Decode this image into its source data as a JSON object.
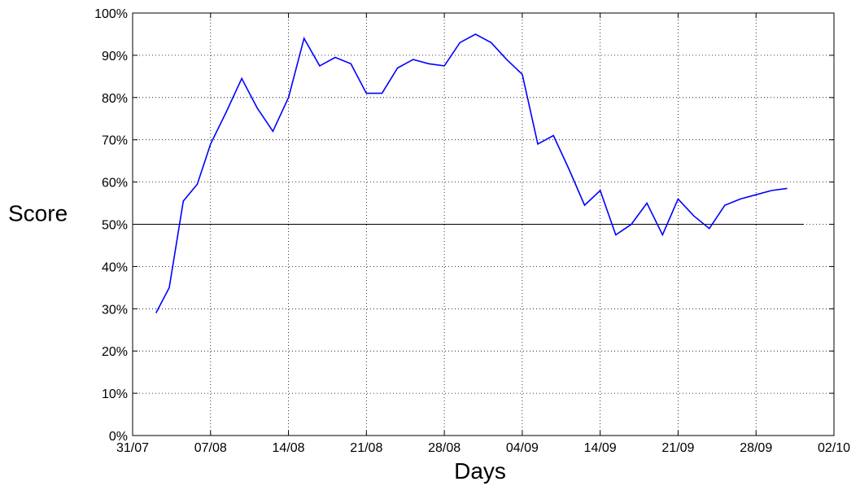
{
  "chart_data": {
    "type": "line",
    "xlabel": "Days",
    "ylabel": "Score",
    "x_ticks": [
      "31/07",
      "07/08",
      "14/08",
      "21/08",
      "28/08",
      "04/09",
      "14/09",
      "21/09",
      "28/09",
      "02/10"
    ],
    "y_ticks": [
      "0%",
      "10%",
      "20%",
      "30%",
      "40%",
      "50%",
      "60%",
      "70%",
      "80%",
      "90%",
      "100%"
    ],
    "ylim": [
      0,
      100
    ],
    "x_range": [
      0,
      9
    ],
    "grid": true,
    "reference_line": 50,
    "colors": {
      "series": "#0000ff",
      "reference": "#000000"
    },
    "series": [
      {
        "x": [
          0.3,
          0.47,
          0.65,
          0.83,
          1.0,
          1.2,
          1.4,
          1.6,
          1.8,
          2.0,
          2.2,
          2.4,
          2.6,
          2.8,
          3.0,
          3.2,
          3.4,
          3.6,
          3.8,
          4.0,
          4.2,
          4.4,
          4.6,
          4.8,
          5.0,
          5.2,
          5.4,
          5.6,
          5.8,
          6.0,
          6.2,
          6.4,
          6.6,
          6.8,
          7.0,
          7.2,
          7.4,
          7.6,
          7.8,
          8.0,
          8.2,
          8.4
        ],
        "values": [
          29,
          35,
          55.5,
          59.5,
          69,
          76.5,
          84.5,
          77.5,
          72,
          80,
          94,
          87.5,
          89.5,
          88,
          81,
          81,
          87,
          89,
          88,
          87.5,
          93,
          95,
          93,
          89,
          85.5,
          69,
          71,
          63,
          54.5,
          58,
          47.5,
          50,
          55,
          47.5,
          56,
          52,
          49,
          54.5,
          56,
          57,
          58,
          58.5
        ]
      }
    ]
  }
}
